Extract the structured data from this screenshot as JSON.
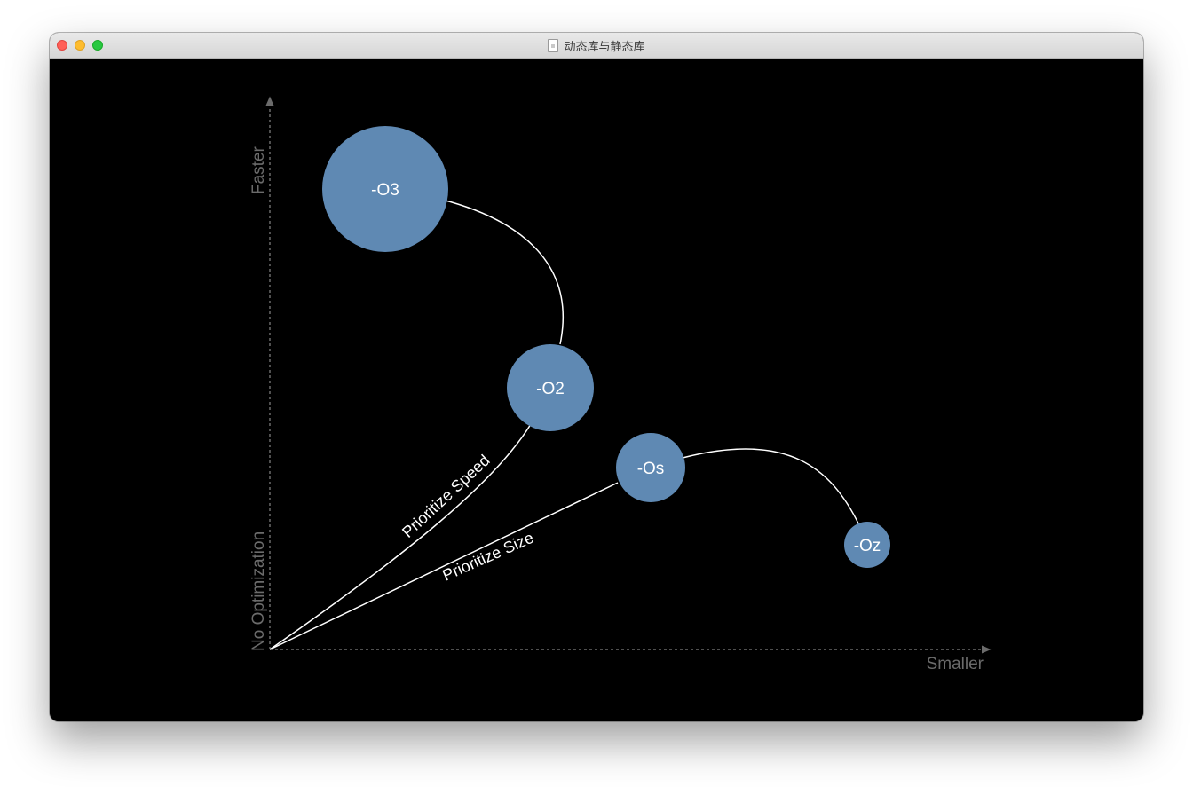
{
  "window": {
    "title": "动态库与静态库"
  },
  "colors": {
    "bubble": "#5f89b3",
    "background": "#000000",
    "axis": "#6b6b6b",
    "curve": "#ffffff"
  },
  "slide": {
    "y_axis": {
      "top_label": "Faster",
      "bottom_label": "No Optimization"
    },
    "x_axis": {
      "label": "Smaller"
    },
    "curves": [
      {
        "label": "Prioritize Speed"
      },
      {
        "label": "Prioritize Size"
      }
    ],
    "bubbles": [
      {
        "label": "-O3"
      },
      {
        "label": "-O2"
      },
      {
        "label": "-Os"
      },
      {
        "label": "-Oz"
      }
    ]
  }
}
